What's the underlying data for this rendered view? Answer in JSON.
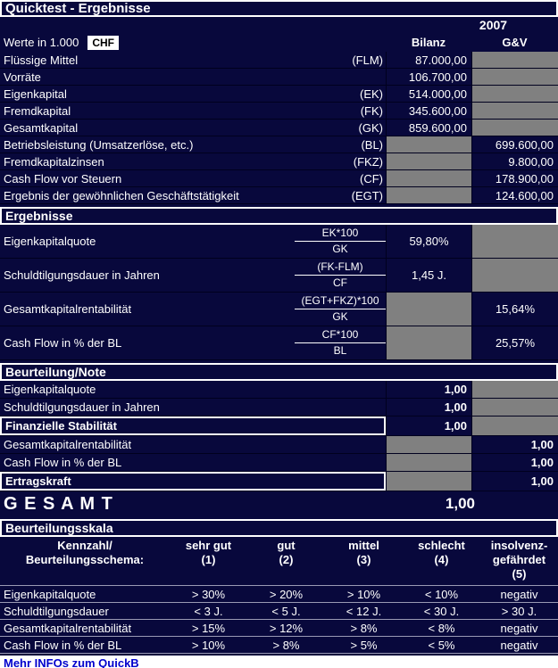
{
  "colors": {
    "background": "#08083c",
    "locked_cell_gray": "#808080",
    "text": "#ffffff",
    "link_blue": "#0000cc"
  },
  "header": {
    "title": "Quicktest - Ergebnisse",
    "year": "2007",
    "unit_label": "Werte in 1.000",
    "currency": "CHF",
    "col_bilanz": "Bilanz",
    "col_guv": "G&V"
  },
  "input_rows": [
    {
      "label": "Flüssige Mittel",
      "code": "(FLM)",
      "bilanz": "87.000,00",
      "guv": ""
    },
    {
      "label": "Vorräte",
      "code": "",
      "bilanz": "106.700,00",
      "guv": ""
    },
    {
      "label": "Eigenkapital",
      "code": "(EK)",
      "bilanz": "514.000,00",
      "guv": ""
    },
    {
      "label": "Fremdkapital",
      "code": "(FK)",
      "bilanz": "345.600,00",
      "guv": ""
    },
    {
      "label": "Gesamtkapital",
      "code": "(GK)",
      "bilanz": "859.600,00",
      "guv": ""
    },
    {
      "label": "Betriebsleistung (Umsatzerlöse, etc.)",
      "code": "(BL)",
      "bilanz": "",
      "guv": "699.600,00"
    },
    {
      "label": "Fremdkapitalzinsen",
      "code": "(FKZ)",
      "bilanz": "",
      "guv": "9.800,00"
    },
    {
      "label": "Cash Flow vor Steuern",
      "code": "(CF)",
      "bilanz": "",
      "guv": "178.900,00"
    },
    {
      "label": "Ergebnis der gewöhnlichen Geschäftstätigkeit",
      "code": "(EGT)",
      "bilanz": "",
      "guv": "124.600,00"
    }
  ],
  "ergebnisse": {
    "header": "Ergebnisse",
    "rows": [
      {
        "label": "Eigenkapitalquote",
        "formula_top": "EK*100",
        "formula_bottom": "GK",
        "bilanz": "59,80%",
        "guv": ""
      },
      {
        "label": "Schuldtilgungsdauer in Jahren",
        "formula_top": "(FK-FLM)",
        "formula_bottom": "CF",
        "bilanz": "1,45 J.",
        "guv": ""
      },
      {
        "label": "Gesamtkapitalrentabilität",
        "formula_top": "(EGT+FKZ)*100",
        "formula_bottom": "GK",
        "bilanz": "",
        "guv": "15,64%"
      },
      {
        "label": "Cash Flow in % der BL",
        "formula_top": "CF*100",
        "formula_bottom": "BL",
        "bilanz": "",
        "guv": "25,57%"
      }
    ]
  },
  "beurteilung": {
    "header": "Beurteilung/Note",
    "rows": [
      {
        "label": "Eigenkapitalquote",
        "bilanz": "1,00",
        "guv": ""
      },
      {
        "label": "Schuldtilgungsdauer in Jahren",
        "bilanz": "1,00",
        "guv": ""
      },
      {
        "label": "Finanzielle Stabilität",
        "bilanz": "1,00",
        "guv": ""
      },
      {
        "label": "Gesamtkapitalrentabilität",
        "bilanz": "",
        "guv": "1,00"
      },
      {
        "label": "Cash Flow in % der BL",
        "bilanz": "",
        "guv": "1,00"
      },
      {
        "label": "Ertragskraft",
        "bilanz": "",
        "guv": "1,00"
      }
    ]
  },
  "gesamt": {
    "label": "G E S A M T",
    "value": "1,00"
  },
  "skala": {
    "header": "Beurteilungsskala",
    "corner_line1": "Kennzahl/",
    "corner_line2": "Beurteilungsschema:",
    "col_headers": [
      {
        "l1": "sehr gut",
        "l2": "(1)",
        "l3": ""
      },
      {
        "l1": "gut",
        "l2": "(2)",
        "l3": ""
      },
      {
        "l1": "mittel",
        "l2": "(3)",
        "l3": ""
      },
      {
        "l1": "schlecht",
        "l2": "(4)",
        "l3": ""
      },
      {
        "l1": "insolvenz-",
        "l2": "gefährdet",
        "l3": "(5)"
      }
    ],
    "rows": [
      {
        "label": "Eigenkapitalquote",
        "cells": [
          "> 30%",
          "> 20%",
          "> 10%",
          "< 10%",
          "negativ"
        ]
      },
      {
        "label": "Schuldtilgungsdauer",
        "cells": [
          "< 3 J.",
          "< 5 J.",
          "< 12 J.",
          "< 30 J.",
          "> 30 J."
        ]
      },
      {
        "label": "Gesamtkapitalrentabilität",
        "cells": [
          "> 15%",
          "> 12%",
          "> 8%",
          "< 8%",
          "negativ"
        ]
      },
      {
        "label": "Cash Flow in % der BL",
        "cells": [
          "> 10%",
          "> 8%",
          "> 5%",
          "< 5%",
          "negativ"
        ]
      }
    ]
  },
  "footer": {
    "link_text": "Mehr INFOs zum QuickB"
  }
}
